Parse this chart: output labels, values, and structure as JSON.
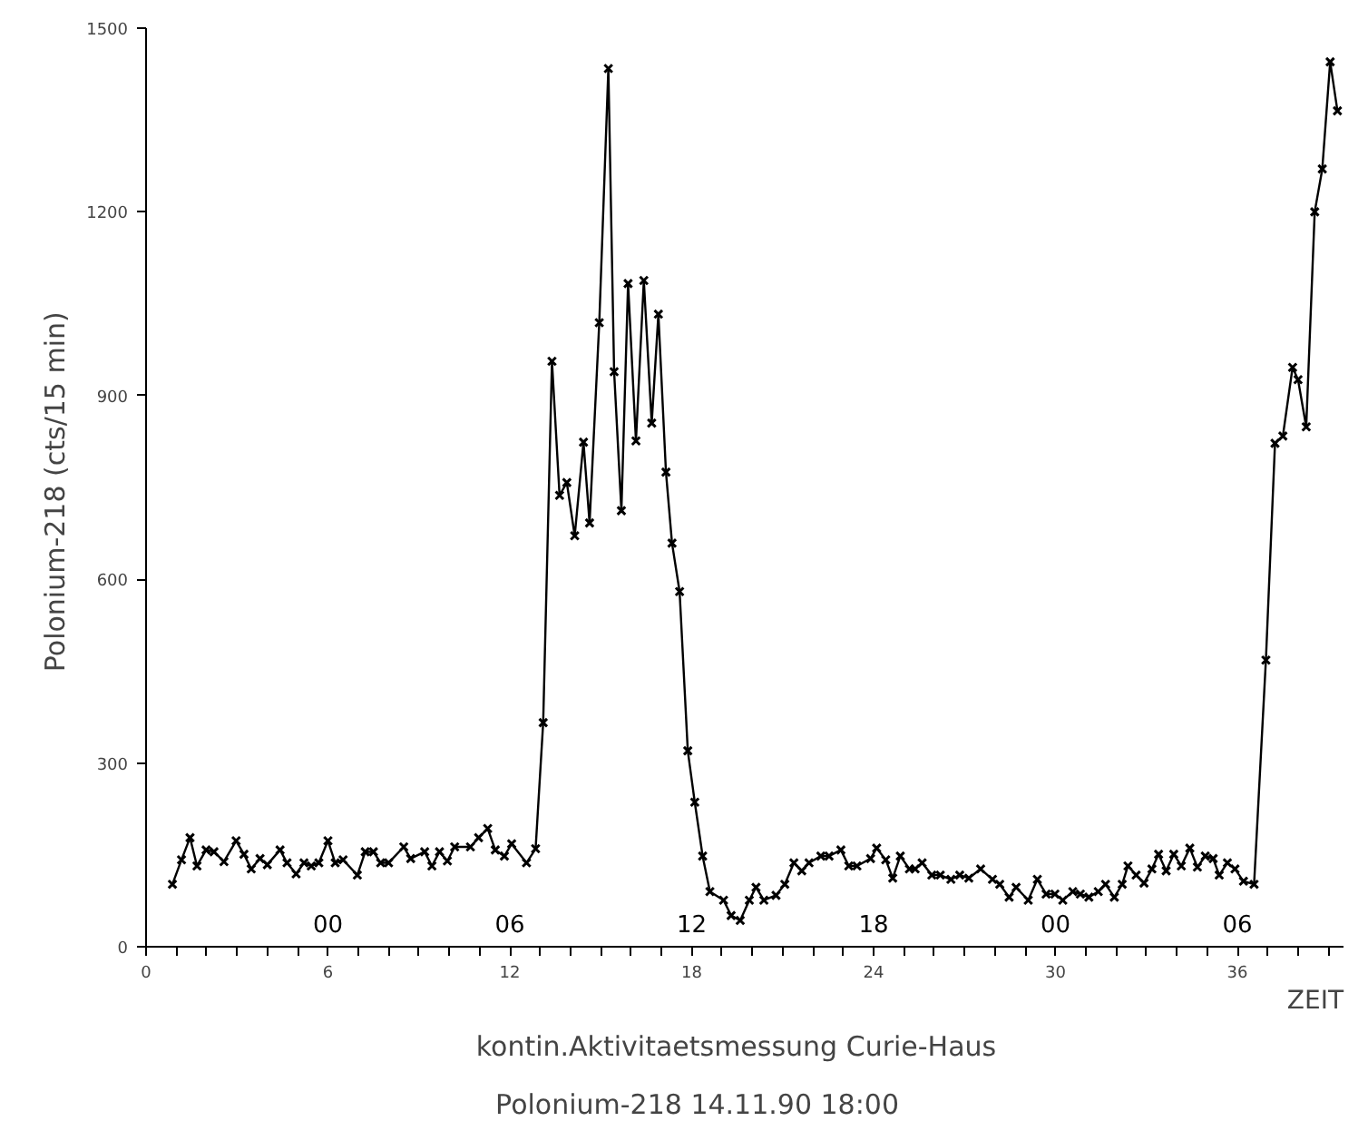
{
  "chart_data": {
    "type": "line",
    "ylabel": "Polonium-218  (cts/15 min)",
    "xlabel": "ZEIT",
    "annotations": [
      "kontin.Aktivitaetsmessung   Curie-Haus",
      "Polonium-218        14.11.90     18:00",
      "00",
      "06",
      "12",
      "18",
      "00",
      "06"
    ],
    "x": [
      0.87,
      1.17,
      1.45,
      1.68,
      1.98,
      2.24,
      2.57,
      2.97,
      3.23,
      3.47,
      3.76,
      4.0,
      4.42,
      4.65,
      4.95,
      5.21,
      5.45,
      5.7,
      6.0,
      6.24,
      6.5,
      6.97,
      7.23,
      7.5,
      7.74,
      8.0,
      8.5,
      8.73,
      9.19,
      9.43,
      9.68,
      9.94,
      10.18,
      10.7,
      10.97,
      11.27,
      11.52,
      11.82,
      12.06,
      12.55,
      12.85,
      13.1,
      13.39,
      13.64,
      13.88,
      14.14,
      14.43,
      14.63,
      14.95,
      15.25,
      15.44,
      15.68,
      15.9,
      16.16,
      16.42,
      16.68,
      16.9,
      17.15,
      17.35,
      17.6,
      17.87,
      18.1,
      18.36,
      18.6,
      19.05,
      19.3,
      19.6,
      19.9,
      20.12,
      20.38,
      20.78,
      21.07,
      21.37,
      21.63,
      21.87,
      22.26,
      22.53,
      22.92,
      23.18,
      23.45,
      23.9,
      24.1,
      24.4,
      24.63,
      24.88,
      25.18,
      25.37,
      25.6,
      25.92,
      26.2,
      26.55,
      26.84,
      27.14,
      27.53,
      27.92,
      28.16,
      28.47,
      28.7,
      29.1,
      29.4,
      29.69,
      29.98,
      30.24,
      30.57,
      30.82,
      31.1,
      31.41,
      31.65,
      31.94,
      32.2,
      32.39,
      32.66,
      32.92,
      33.18,
      33.4,
      33.65,
      33.9,
      34.15,
      34.43,
      34.68,
      34.94,
      35.2,
      35.4,
      35.67,
      35.92,
      36.2,
      36.55,
      36.94,
      37.24,
      37.5,
      37.82,
      38.0,
      38.27,
      38.55,
      38.8,
      39.06,
      39.3
    ],
    "values": [
      102,
      142,
      178,
      132,
      158,
      155,
      139,
      173,
      151,
      127,
      144,
      134,
      158,
      137,
      119,
      137,
      132,
      137,
      173,
      137,
      142,
      117,
      155,
      155,
      137,
      137,
      163,
      144,
      155,
      132,
      155,
      140,
      163,
      163,
      178,
      193,
      158,
      148,
      168,
      137,
      160,
      366,
      956,
      737,
      758,
      671,
      824,
      692,
      1019,
      1434,
      939,
      712,
      1083,
      826,
      1088,
      855,
      1033,
      775,
      659,
      580,
      320,
      236,
      148,
      90,
      76,
      51,
      43,
      76,
      97,
      76,
      84,
      102,
      137,
      124,
      137,
      148,
      148,
      158,
      132,
      132,
      144,
      161,
      142,
      112,
      148,
      127,
      127,
      137,
      117,
      117,
      110,
      117,
      112,
      127,
      110,
      102,
      81,
      97,
      76,
      110,
      86,
      86,
      76,
      90,
      86,
      81,
      90,
      102,
      81,
      102,
      132,
      117,
      104,
      127,
      151,
      124,
      151,
      132,
      161,
      130,
      148,
      144,
      117,
      137,
      127,
      107,
      102,
      468,
      822,
      834,
      946,
      926,
      849,
      1200,
      1270,
      1445,
      1365
    ],
    "color": "#000000",
    "marker": "cross",
    "line_style": "solid",
    "xlim": [
      0,
      39.5
    ],
    "ylim": [
      0,
      1500
    ],
    "xticks": [
      0,
      {
        "value": 1,
        "label": null
      },
      {
        "value": 2,
        "label": null
      },
      {
        "value": 3,
        "label": null
      },
      {
        "value": 4,
        "label": null
      },
      {
        "value": 5,
        "label": null
      },
      6,
      {
        "value": 7,
        "label": null
      },
      {
        "value": 8,
        "label": null
      },
      {
        "value": 9,
        "label": null
      },
      {
        "value": 10,
        "label": null
      },
      {
        "value": 11,
        "label": null
      },
      12,
      {
        "value": 13,
        "label": null
      },
      {
        "value": 14,
        "label": null
      },
      {
        "value": 15,
        "label": null
      },
      {
        "value": 16,
        "label": null
      },
      {
        "value": 17,
        "label": null
      },
      18,
      {
        "value": 19,
        "label": null
      },
      {
        "value": 20,
        "label": null
      },
      {
        "value": 21,
        "label": null
      },
      {
        "value": 22,
        "label": null
      },
      {
        "value": 23,
        "label": null
      },
      24,
      {
        "value": 25,
        "label": null
      },
      {
        "value": 26,
        "label": null
      },
      {
        "value": 27,
        "label": null
      },
      {
        "value": 28,
        "label": null
      },
      {
        "value": 29,
        "label": null
      },
      30,
      {
        "value": 31,
        "label": null
      },
      {
        "value": 32,
        "label": null
      },
      {
        "value": 33,
        "label": null
      },
      {
        "value": 34,
        "label": null
      },
      {
        "value": 35,
        "label": null
      },
      36,
      {
        "value": 37,
        "label": null
      },
      {
        "value": 38,
        "label": null
      },
      {
        "value": 39,
        "label": null
      }
    ],
    "yticks": [
      0,
      300,
      600,
      900,
      1200,
      1500
    ],
    "grid": false
  }
}
